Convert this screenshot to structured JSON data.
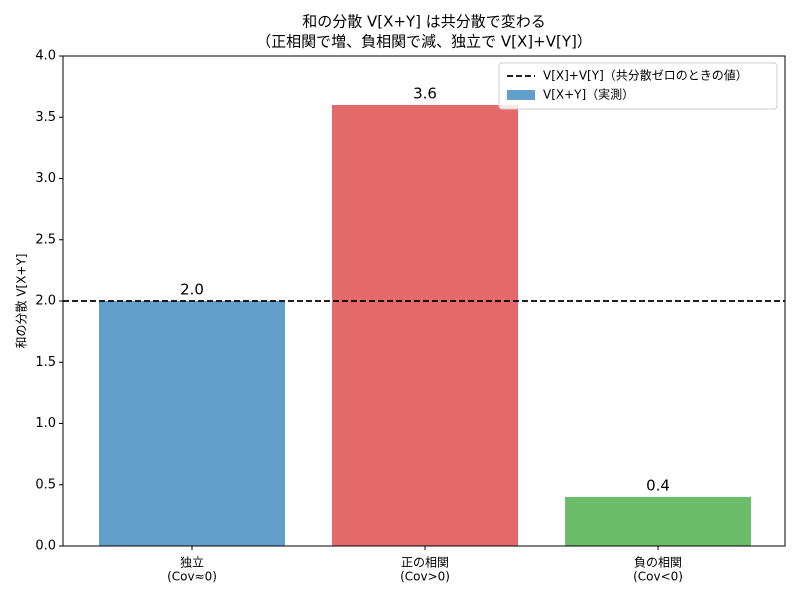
{
  "chart_data": {
    "type": "bar",
    "title": [
      "和の分散 V[X+Y] は共分散で変わる",
      "（正相関で増、負相関で減、独立で V[X]+V[Y]）"
    ],
    "ylabel": "和の分散 V[X+Y]",
    "categories": [
      [
        "独立",
        "(Cov≈0)"
      ],
      [
        "正の相関",
        "(Cov>0)"
      ],
      [
        "負の相関",
        "(Cov<0)"
      ]
    ],
    "series": [
      {
        "name": "V[X+Y]（実測）",
        "colors": [
          "#629fca",
          "#e3696a",
          "#6bbd6a"
        ],
        "values": [
          2.0,
          3.6,
          0.4
        ],
        "value_labels": [
          "2.0",
          "3.6",
          "0.4"
        ]
      }
    ],
    "reference_line": {
      "name": "V[X]+V[Y]（共分散ゼロのときの値）",
      "value": 2.0,
      "color": "#000000",
      "style": "dashed"
    },
    "ylim": [
      0,
      4
    ],
    "yticks": [
      {
        "value": 0,
        "label": "0.0"
      },
      {
        "value": 0.5,
        "label": "0.5"
      },
      {
        "value": 1,
        "label": "1.0"
      },
      {
        "value": 1.5,
        "label": "1.5"
      },
      {
        "value": 2,
        "label": "2.0"
      },
      {
        "value": 2.5,
        "label": "2.5"
      },
      {
        "value": 3,
        "label": "3.0"
      },
      {
        "value": 3.5,
        "label": "3.5"
      },
      {
        "value": 4,
        "label": "4.0"
      }
    ],
    "legend": "upper right"
  }
}
